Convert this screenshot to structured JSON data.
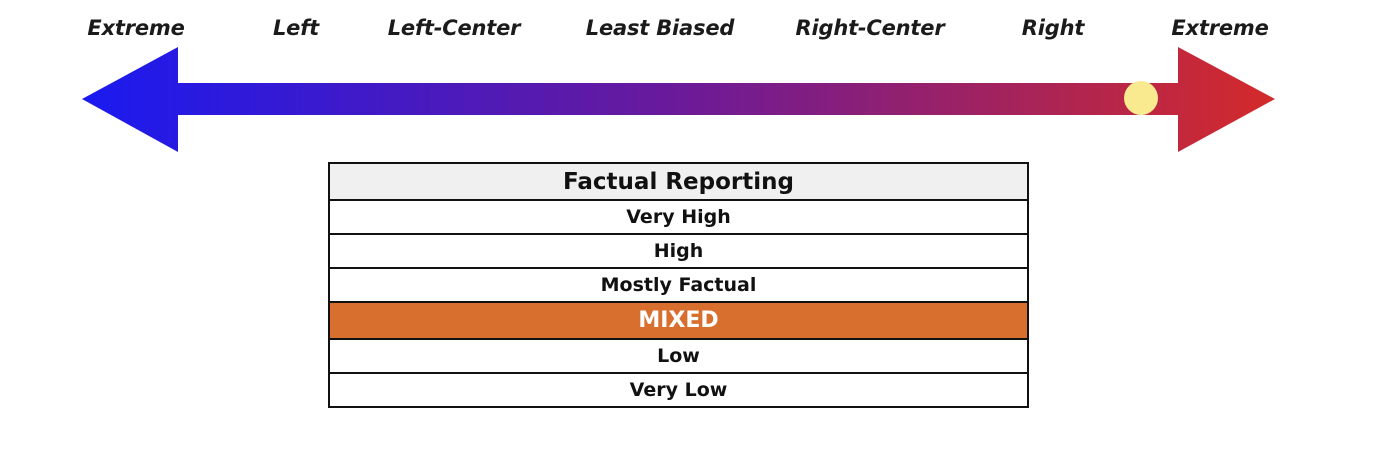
{
  "bias_scale": {
    "labels": [
      "Extreme",
      "Left",
      "Left-Center",
      "Least Biased",
      "Right-Center",
      "Right",
      "Extreme"
    ],
    "marker_position": "between Right and Extreme",
    "gradient_colors": [
      "#1a1af0",
      "#6a1a9a",
      "#d42a2a"
    ],
    "marker_color": "#f9ea90"
  },
  "factual_reporting": {
    "title": "Factual Reporting",
    "rows": [
      "Very High",
      "High",
      "Mostly Factual",
      "MIXED",
      "Low",
      "Very Low"
    ],
    "selected": "MIXED",
    "selected_color": "#d86f2e"
  }
}
